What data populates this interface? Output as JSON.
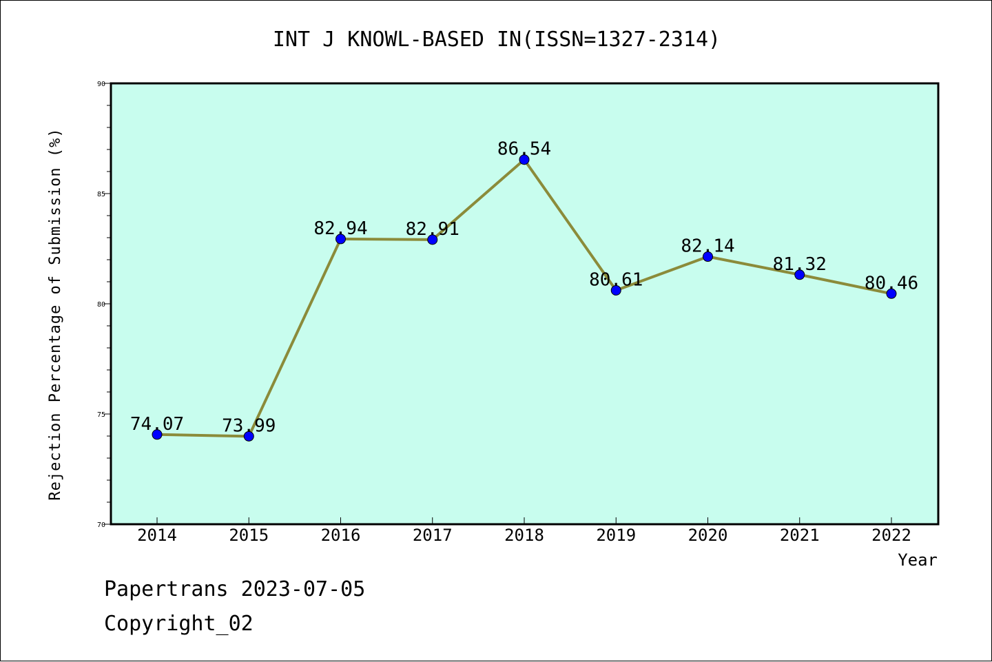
{
  "chart_data": {
    "type": "line",
    "title": "INT J KNOWL-BASED IN(ISSN=1327-2314)",
    "xlabel": "Year",
    "ylabel": "Rejection Percentage of Submission (%)",
    "categories": [
      "2014",
      "2015",
      "2016",
      "2017",
      "2018",
      "2019",
      "2020",
      "2021",
      "2022"
    ],
    "values": [
      74.07,
      73.99,
      82.94,
      82.91,
      86.54,
      80.61,
      82.14,
      81.32,
      80.46
    ],
    "data_labels": [
      "74.07",
      "73.99",
      "82.94",
      "82.91",
      "86.54",
      "80.61",
      "82.14",
      "81.32",
      "80.46"
    ],
    "ylim": [
      70,
      90
    ],
    "yticks": [
      70,
      75,
      80,
      85,
      90
    ],
    "ytick_labels": [
      "70",
      "75",
      "80",
      "85",
      "90"
    ],
    "grid": false,
    "colors": {
      "plot_background": "#c8fdee",
      "line": "#8b8b3a",
      "marker": "#0000ff"
    }
  },
  "footer": {
    "line1": "Papertrans 2023-07-05",
    "line2": "Copyright_02"
  }
}
